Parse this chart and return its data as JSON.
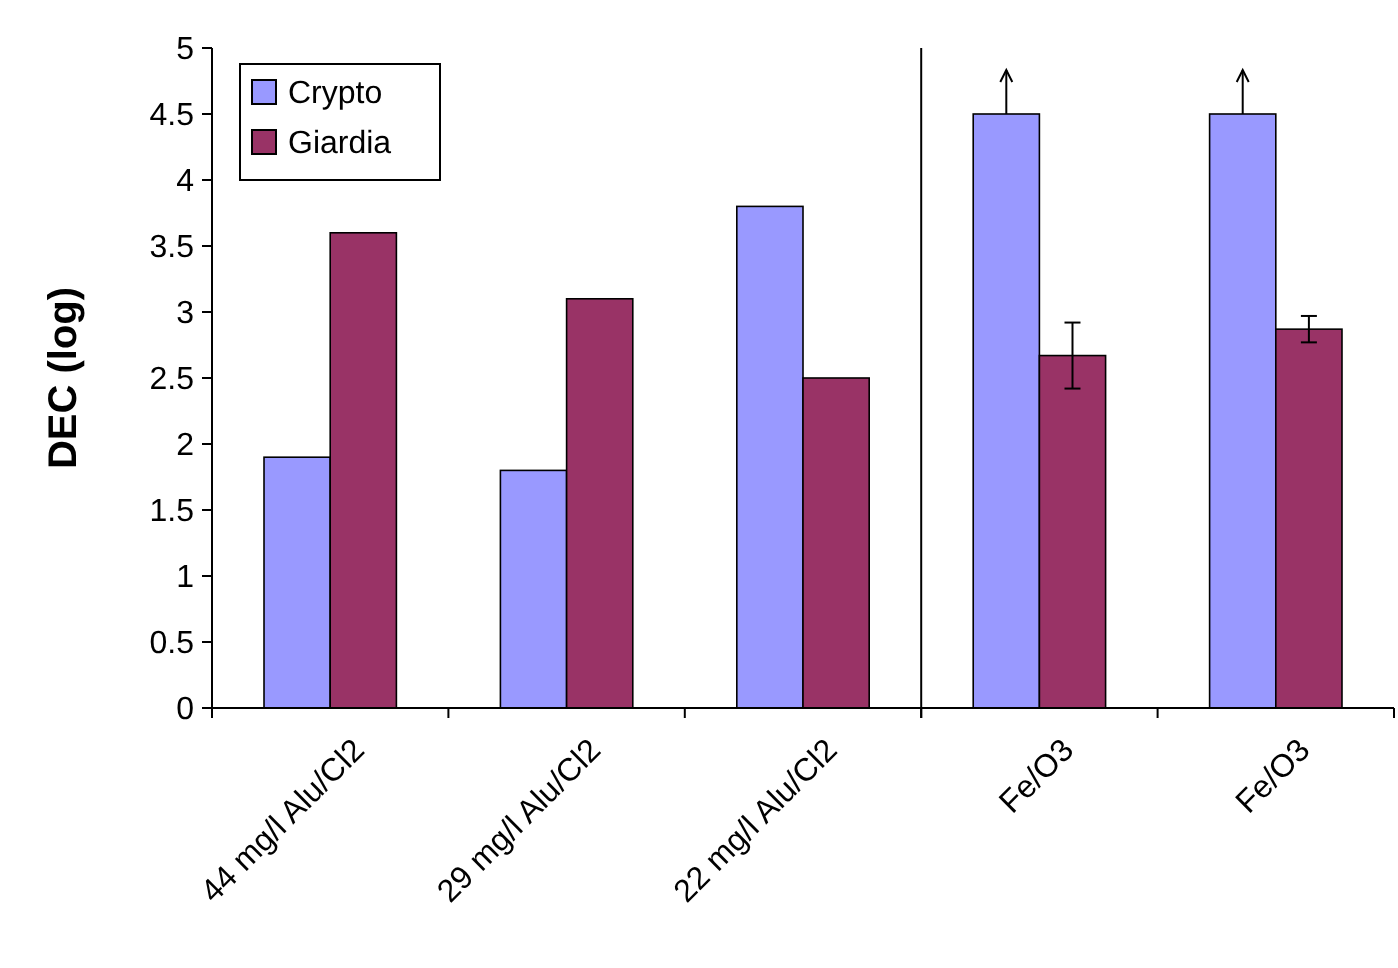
{
  "chart_data": [
    {
      "type": "bar",
      "ylabel": "DEC (log)",
      "categories": [
        "44 mg/l Alu/Cl2",
        "29 mg/l Alu/Cl2",
        "22 mg/l Alu/Cl2"
      ],
      "series": [
        {
          "name": "Crypto",
          "color": "#9999ff",
          "values": [
            1.9,
            1.8,
            3.8
          ]
        },
        {
          "name": "Giardia",
          "color": "#993366",
          "values": [
            3.6,
            3.1,
            2.5
          ]
        }
      ],
      "ylim": [
        0,
        5
      ],
      "yticks": [
        0,
        0.5,
        1,
        1.5,
        2,
        2.5,
        3,
        3.5,
        4,
        4.5,
        5
      ],
      "legend": "top left"
    },
    {
      "type": "bar",
      "categories": [
        "Fe/O3",
        "Fe/O3"
      ],
      "series": [
        {
          "color": "#9999ff",
          "values": [
            4.5,
            4.5
          ]
        },
        {
          "color": "#993366",
          "values": [
            2.67,
            2.87
          ],
          "errors": [
            0.25,
            0.1
          ]
        }
      ],
      "ylim": [
        0,
        5
      ],
      "tick_labels": "x"
    }
  ]
}
